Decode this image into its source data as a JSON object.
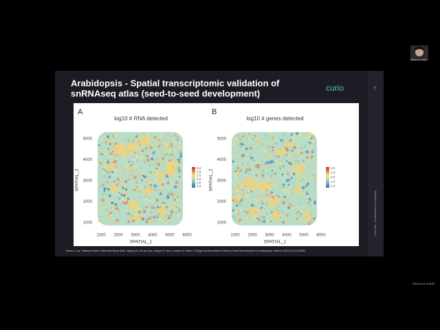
{
  "participant": {
    "name": "Rebecca Lewis"
  },
  "slide": {
    "title_line1": "Arabidopsis - Spatial transcriptomic validation of",
    "title_line2": "snRNAseq atlas (seed-to-seed development)",
    "logo": "curio",
    "page_number": "7",
    "side_note": "Curio Bio - Confidential & Proprietary",
    "citation": "Travis A. Lee, Tatsuya Nobori, Natanella Illouz-Eliaz, Jiaying Xu, Bruce Jow, Joseph R. Nery, Joseph R. Ecker. A Single-Nucleus Atlas of Seed-to-Seed Development in Arabidopsis. bioRxiv 2023.03.23.533992",
    "panels": [
      {
        "letter": "A",
        "title": "log10 # RNA detected",
        "x_label": "SPATIAL_1",
        "y_label": "SPATIAL_2",
        "xticks": [
          1000,
          2000,
          3000,
          4000,
          5000,
          6000
        ],
        "yticks": [
          1000,
          2000,
          3000,
          4000,
          5000
        ],
        "colorbar_ticks": [
          "1.0",
          "1.5",
          "2.0",
          "2.5",
          "3.0",
          "3.5"
        ]
      },
      {
        "letter": "B",
        "title": "log10 # genes detected",
        "x_label": "SPATIAL_1",
        "y_label": "SPATIAL_2",
        "xticks": [
          1000,
          2000,
          3000,
          4000,
          5000,
          6000
        ],
        "yticks": [
          1000,
          2000,
          3000,
          4000,
          5000
        ],
        "colorbar_ticks": [
          "1.0",
          "1.5",
          "2.0",
          "2.5",
          "3.0"
        ]
      }
    ]
  },
  "timestamp": "2023-04-14 11:05:35"
}
